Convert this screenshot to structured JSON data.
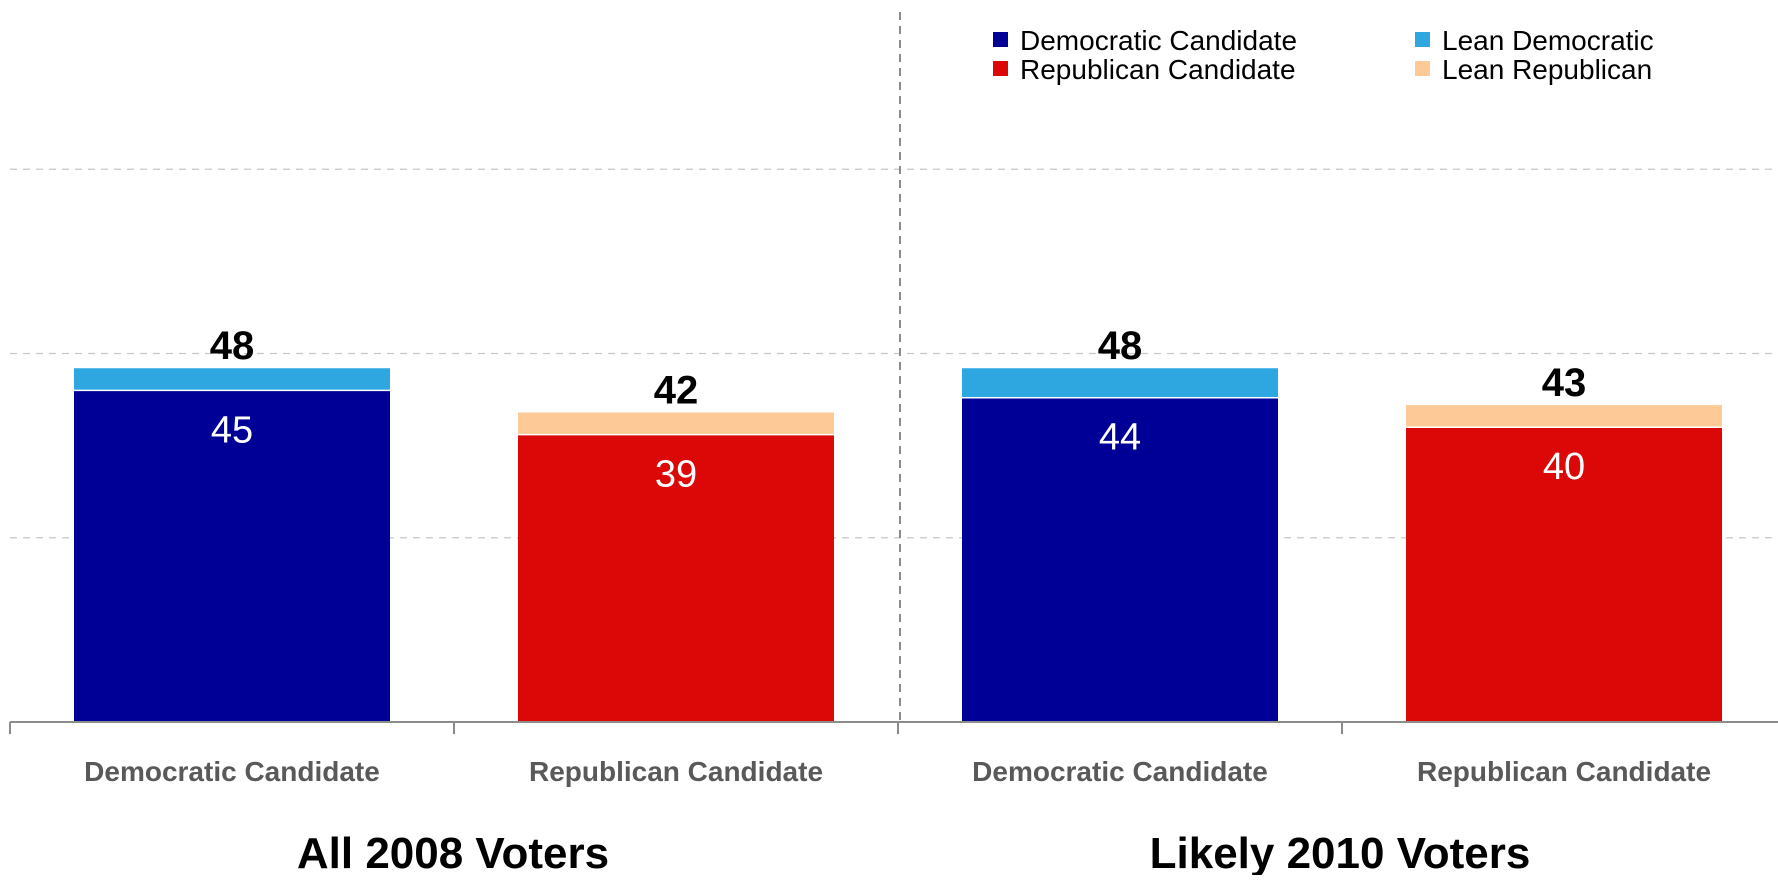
{
  "chart_data": {
    "type": "bar",
    "stacked": true,
    "categories": [
      "Democratic Candidate",
      "Republican Candidate",
      "Democratic Candidate",
      "Republican Candidate"
    ],
    "groups": [
      {
        "label": "All 2008 Voters",
        "categories": [
          "Democratic Candidate",
          "Republican Candidate"
        ]
      },
      {
        "label": "Likely 2010 Voters",
        "categories": [
          "Democratic Candidate",
          "Republican Candidate"
        ]
      }
    ],
    "bars": [
      {
        "category": "Democratic Candidate",
        "group": "All 2008 Voters",
        "base": 45,
        "lean": 3,
        "total": 48,
        "base_series": "Democratic Candidate",
        "lean_series": "Lean Democratic"
      },
      {
        "category": "Republican Candidate",
        "group": "All 2008 Voters",
        "base": 39,
        "lean": 3,
        "total": 42,
        "base_series": "Republican Candidate",
        "lean_series": "Lean Republican"
      },
      {
        "category": "Democratic Candidate",
        "group": "Likely 2010 Voters",
        "base": 44,
        "lean": 4,
        "total": 48,
        "base_series": "Democratic Candidate",
        "lean_series": "Lean Democratic"
      },
      {
        "category": "Republican Candidate",
        "group": "Likely 2010 Voters",
        "base": 40,
        "lean": 3,
        "total": 43,
        "base_series": "Republican Candidate",
        "lean_series": "Lean Republican"
      }
    ],
    "legend": [
      {
        "name": "Democratic Candidate",
        "color": "#000096"
      },
      {
        "name": "Lean Democratic",
        "color": "#2ea7e0"
      },
      {
        "name": "Republican Candidate",
        "color": "#dc0808"
      },
      {
        "name": "Lean Republican",
        "color": "#fdc997"
      }
    ],
    "legend_position": "top-right",
    "ylim": [
      0,
      100
    ],
    "grid": true,
    "gridlines": [
      25,
      50,
      75
    ],
    "title": "",
    "xlabel": "",
    "ylabel": ""
  }
}
